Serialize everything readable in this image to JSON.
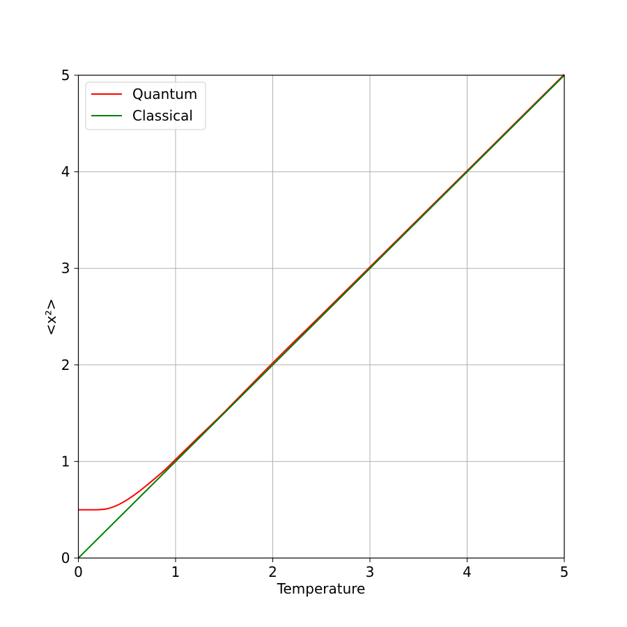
{
  "chart_data": {
    "type": "line",
    "title": "",
    "xlabel": "Temperature",
    "ylabel": "<x²>",
    "xlim": [
      0,
      5
    ],
    "ylim": [
      0,
      5
    ],
    "xticks": [
      "0",
      "1",
      "2",
      "3",
      "4",
      "5"
    ],
    "yticks": [
      "0",
      "1",
      "2",
      "3",
      "4",
      "5"
    ],
    "grid": true,
    "legend_position": "top-left",
    "series": [
      {
        "name": "Quantum",
        "color": "#ff0000",
        "x": [
          0,
          0.1,
          0.2,
          0.3,
          0.4,
          0.5,
          0.6,
          0.7,
          0.8,
          0.9,
          1.0,
          1.25,
          1.5,
          2.0,
          2.5,
          3.0,
          3.5,
          4.0,
          4.5,
          5.0
        ],
        "y": [
          0.5,
          0.5,
          0.5005,
          0.5115,
          0.5465,
          0.6019,
          0.6716,
          0.7504,
          0.8347,
          0.9219,
          1.0208,
          1.2661,
          1.5093,
          2.0208,
          2.5166,
          3.0139,
          3.5119,
          4.0104,
          4.5093,
          5.0083
        ]
      },
      {
        "name": "Classical",
        "color": "#008000",
        "x": [
          0,
          5
        ],
        "y": [
          0,
          5
        ]
      }
    ]
  }
}
